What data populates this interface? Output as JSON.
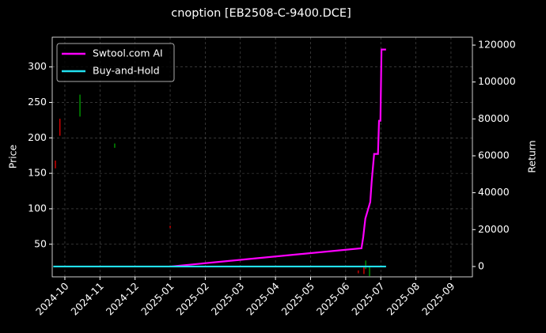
{
  "chart_data": {
    "type": "candlestick",
    "title": "cnoption [EB2508-C-9400.DCE]",
    "ylabel": "Price",
    "y2label": "Return",
    "candles": {
      "x": [
        -0.27,
        -0.14,
        0.43,
        1.42,
        3.0,
        8.36,
        8.52,
        8.57,
        8.68
      ],
      "open": [
        168,
        227,
        230,
        186,
        76,
        13,
        18,
        15,
        5
      ],
      "close": [
        157,
        203,
        261,
        192,
        73,
        9,
        8,
        27,
        18
      ],
      "up_color": "#00b000",
      "down_color": "#ff0000"
    },
    "series": [
      {
        "name": "Swtool.com AI",
        "color": "#ff00ff",
        "axis": "y2",
        "x": [
          3.02,
          8.45,
          8.5,
          8.56,
          8.7,
          8.74,
          8.81,
          8.92,
          8.95,
          8.99,
          9.02,
          9.15
        ],
        "values": [
          0,
          9900,
          16000,
          26000,
          35000,
          46000,
          61000,
          61000,
          79000,
          79000,
          117600,
          117600
        ]
      },
      {
        "name": "Buy-and-Hold",
        "color": "#22e0f0",
        "axis": "y2",
        "x": [
          -0.33,
          9.15
        ],
        "values": [
          0,
          0
        ]
      }
    ],
    "xlim": [
      -0.36,
      11.61
    ],
    "xticks": [
      {
        "value": 0,
        "label": "2024-10"
      },
      {
        "value": 1,
        "label": "2024-11"
      },
      {
        "value": 2,
        "label": "2024-12"
      },
      {
        "value": 3,
        "label": "2025-01"
      },
      {
        "value": 4,
        "label": "2025-02"
      },
      {
        "value": 5,
        "label": "2025-03"
      },
      {
        "value": 6,
        "label": "2025-04"
      },
      {
        "value": 7,
        "label": "2025-05"
      },
      {
        "value": 8,
        "label": "2025-06"
      },
      {
        "value": 9,
        "label": "2025-07"
      },
      {
        "value": 10,
        "label": "2025-08"
      },
      {
        "value": 11,
        "label": "2025-09"
      }
    ],
    "ylim": [
      4,
      342
    ],
    "yticks": [
      50,
      100,
      150,
      200,
      250,
      300
    ],
    "y2lim": [
      -5600,
      124300
    ],
    "y2ticks": [
      0,
      20000,
      40000,
      60000,
      80000,
      100000,
      120000
    ],
    "grid": true,
    "legend": "upper left"
  }
}
